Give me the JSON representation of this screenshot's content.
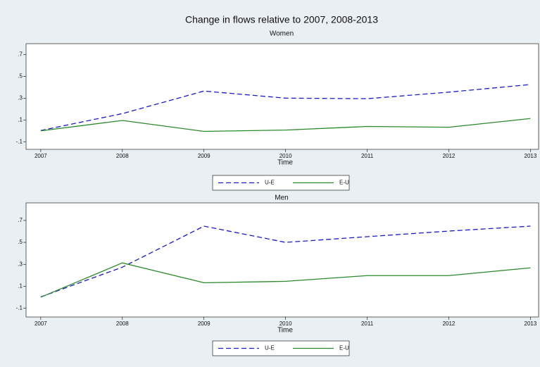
{
  "title": "Change in flows relative to 2007, 2008-2013",
  "chart_data": [
    {
      "type": "line",
      "title": "Women",
      "xlabel": "Time",
      "x": [
        2007,
        2008,
        2009,
        2010,
        2011,
        2012,
        2013
      ],
      "xlim": [
        2006.82,
        2013.1
      ],
      "xticks": [
        2007,
        2008,
        2009,
        2010,
        2011,
        2012,
        2013
      ],
      "ylim": [
        -0.17,
        0.8
      ],
      "yticks": [
        {
          "value": -0.1,
          "label": "-.1"
        },
        {
          "value": 0.1,
          "label": ".1"
        },
        {
          "value": 0.3,
          "label": ".3"
        },
        {
          "value": 0.5,
          "label": ".5"
        },
        {
          "value": 0.7,
          "label": ".7"
        }
      ],
      "legend": "bottom",
      "series": [
        {
          "name": "U-E",
          "color": "#1a1acc",
          "style": "dashed",
          "values": [
            0.003,
            0.158,
            0.365,
            0.3,
            0.295,
            0.355,
            0.425
          ]
        },
        {
          "name": "E-U",
          "color": "#2a8a2a",
          "style": "solid",
          "values": [
            0.0,
            0.095,
            -0.005,
            0.007,
            0.04,
            0.033,
            0.113
          ]
        }
      ]
    },
    {
      "type": "line",
      "title": "Men",
      "xlabel": "Time",
      "x": [
        2007,
        2008,
        2009,
        2010,
        2011,
        2012,
        2013
      ],
      "xlim": [
        2006.82,
        2013.1
      ],
      "xticks": [
        2007,
        2008,
        2009,
        2010,
        2011,
        2012,
        2013
      ],
      "ylim": [
        -0.18,
        0.86
      ],
      "yticks": [
        {
          "value": -0.1,
          "label": "-.1"
        },
        {
          "value": 0.1,
          "label": ".1"
        },
        {
          "value": 0.3,
          "label": ".3"
        },
        {
          "value": 0.5,
          "label": ".5"
        },
        {
          "value": 0.7,
          "label": ".7"
        }
      ],
      "legend": "bottom",
      "series": [
        {
          "name": "U-E",
          "color": "#1a1acc",
          "style": "dashed",
          "values": [
            0.003,
            0.274,
            0.648,
            0.5,
            0.552,
            0.603,
            0.648
          ]
        },
        {
          "name": "E-U",
          "color": "#2a8a2a",
          "style": "solid",
          "values": [
            0.0,
            0.313,
            0.132,
            0.145,
            0.197,
            0.197,
            0.268
          ]
        }
      ]
    }
  ]
}
